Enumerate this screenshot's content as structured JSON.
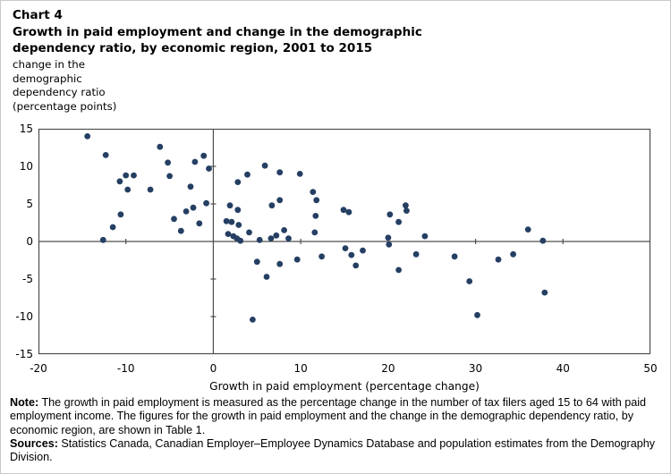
{
  "header": {
    "chart_label": "Chart 4",
    "title_line1": "Growth in paid employment and change in the demographic",
    "title_line2": "dependency ratio, by economic region, 2001 to 2015",
    "y_unit_lines": [
      "change in the",
      "demographic",
      "dependency ratio",
      "(percentage points)"
    ]
  },
  "chart_data": {
    "type": "scatter",
    "title": "Growth in paid employment and change in the demographic dependency ratio, by economic region, 2001 to 2015",
    "xlabel": "Growth in paid employment (percentage change)",
    "ylabel": "change in the demographic dependency ratio (percentage points)",
    "xlim": [
      -20,
      50
    ],
    "ylim": [
      -15,
      15
    ],
    "x_ticks": [
      -20,
      -10,
      0,
      10,
      20,
      30,
      40,
      50
    ],
    "y_ticks": [
      15,
      10,
      5,
      0,
      -5,
      -10,
      -15
    ],
    "grid": false,
    "legend": false,
    "marker_color": "#253F63",
    "axis_color": "#4d4d4d",
    "points": [
      [
        -14.4,
        14.0
      ],
      [
        -12.6,
        0.2
      ],
      [
        -12.3,
        11.5
      ],
      [
        -11.5,
        1.9
      ],
      [
        -10.7,
        8.0
      ],
      [
        -10.6,
        3.6
      ],
      [
        -10.0,
        8.8
      ],
      [
        -9.8,
        6.9
      ],
      [
        -9.1,
        8.8
      ],
      [
        -7.2,
        6.9
      ],
      [
        -6.1,
        12.6
      ],
      [
        -5.2,
        10.5
      ],
      [
        -5.0,
        8.7
      ],
      [
        -4.5,
        3.0
      ],
      [
        -3.7,
        1.4
      ],
      [
        -3.1,
        4.0
      ],
      [
        -2.6,
        7.3
      ],
      [
        -2.3,
        4.5
      ],
      [
        -2.1,
        10.6
      ],
      [
        -1.6,
        2.4
      ],
      [
        -1.1,
        11.4
      ],
      [
        -0.8,
        5.1
      ],
      [
        -0.5,
        9.7
      ],
      [
        1.5,
        2.7
      ],
      [
        2.1,
        2.6
      ],
      [
        2.9,
        2.2
      ],
      [
        1.7,
        1.0
      ],
      [
        2.3,
        0.7
      ],
      [
        2.7,
        0.4
      ],
      [
        3.1,
        0.1
      ],
      [
        1.9,
        4.8
      ],
      [
        2.8,
        4.2
      ],
      [
        2.8,
        7.9
      ],
      [
        3.9,
        8.9
      ],
      [
        5.9,
        10.1
      ],
      [
        7.6,
        9.2
      ],
      [
        9.9,
        9.0
      ],
      [
        4.1,
        1.2
      ],
      [
        5.3,
        0.2
      ],
      [
        6.6,
        0.4
      ],
      [
        7.2,
        0.8
      ],
      [
        8.1,
        1.5
      ],
      [
        8.6,
        0.4
      ],
      [
        6.7,
        4.8
      ],
      [
        7.6,
        5.5
      ],
      [
        11.4,
        6.6
      ],
      [
        11.8,
        5.5
      ],
      [
        11.7,
        3.4
      ],
      [
        11.6,
        1.2
      ],
      [
        5.0,
        -2.7
      ],
      [
        6.1,
        -4.7
      ],
      [
        7.6,
        -3.0
      ],
      [
        9.6,
        -2.4
      ],
      [
        4.5,
        -10.4
      ],
      [
        12.4,
        -2.0
      ],
      [
        14.9,
        4.2
      ],
      [
        15.5,
        3.9
      ],
      [
        15.1,
        -0.9
      ],
      [
        15.8,
        -1.8
      ],
      [
        17.1,
        -1.2
      ],
      [
        16.3,
        -3.2
      ],
      [
        20.2,
        3.6
      ],
      [
        21.2,
        2.6
      ],
      [
        22.0,
        4.8
      ],
      [
        22.1,
        4.1
      ],
      [
        20.0,
        0.5
      ],
      [
        20.1,
        -0.4
      ],
      [
        21.2,
        -3.8
      ],
      [
        23.2,
        -1.7
      ],
      [
        24.2,
        0.7
      ],
      [
        27.6,
        -2.0
      ],
      [
        29.3,
        -5.3
      ],
      [
        30.2,
        -9.8
      ],
      [
        32.6,
        -2.4
      ],
      [
        34.3,
        -1.7
      ],
      [
        36.0,
        1.6
      ],
      [
        37.7,
        0.1
      ],
      [
        37.9,
        -6.8
      ]
    ]
  },
  "footer": {
    "note_label": "Note:",
    "note_text": " The growth in paid employment is measured as the percentage change in the number of tax filers aged 15 to 64 with paid employment income. The figures for the growth in paid employment and the change in the demographic dependency ratio, by economic region, are shown in Table 1.",
    "sources_label": "Sources:",
    "sources_text": " Statistics Canada, Canadian Employer–Employee Dynamics Database and population estimates from the Demography Division."
  }
}
